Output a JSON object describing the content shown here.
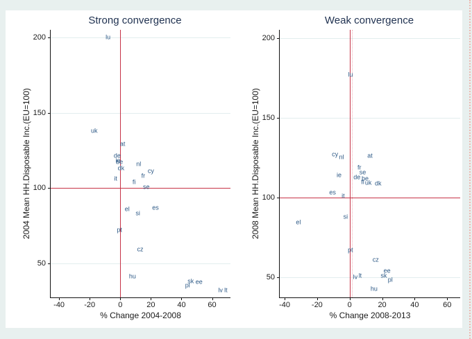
{
  "figure": {
    "background_color": "#e8f0ef",
    "card_color": "#ffffff",
    "reference_line_color": "#c63246",
    "reference_line_dotted_color": "#efb0b6",
    "gridline_color": "#e2edee",
    "point_label_color": "#2d5986",
    "title_color": "#1f3150"
  },
  "chart_data": [
    {
      "type": "scatter",
      "title": "Strong convergence",
      "xlabel": "% Change 2004-2008",
      "ylabel": "2004 Mean HH.Disposable Inc.(EU=100)",
      "xlim": [
        -45.5,
        72
      ],
      "ylim": [
        27.5,
        205
      ],
      "xticks": [
        -40,
        -20,
        0,
        20,
        40,
        60
      ],
      "yticks": [
        50,
        100,
        150,
        200
      ],
      "grid": "horizontal-only",
      "legend": "none",
      "marker_style": "country-code-text-labels",
      "reference_lines": [
        {
          "orientation": "vertical",
          "value": 0,
          "style": "solid"
        },
        {
          "orientation": "horizontal",
          "value": 100,
          "style": "solid"
        }
      ],
      "points": [
        {
          "label": "lu",
          "x": -8,
          "y": 200
        },
        {
          "label": "uk",
          "x": -17,
          "y": 138
        },
        {
          "label": "at",
          "x": 1.5,
          "y": 129
        },
        {
          "label": "de",
          "x": -2,
          "y": 121.5
        },
        {
          "label": "ie",
          "x": -1.5,
          "y": 118
        },
        {
          "label": "be",
          "x": -0.5,
          "y": 117
        },
        {
          "label": "nl",
          "x": 12,
          "y": 116
        },
        {
          "label": "dk",
          "x": 0.5,
          "y": 113
        },
        {
          "label": "cy",
          "x": 20,
          "y": 111
        },
        {
          "label": "fr",
          "x": 15,
          "y": 108
        },
        {
          "label": "it",
          "x": -3,
          "y": 106
        },
        {
          "label": "fi",
          "x": 9,
          "y": 104
        },
        {
          "label": "se",
          "x": 17,
          "y": 100.5
        },
        {
          "label": "es",
          "x": 23,
          "y": 87
        },
        {
          "label": "el",
          "x": 4.5,
          "y": 86
        },
        {
          "label": "si",
          "x": 11.5,
          "y": 83
        },
        {
          "label": "pt",
          "x": -0.5,
          "y": 72
        },
        {
          "label": "cz",
          "x": 13,
          "y": 59
        },
        {
          "label": "hu",
          "x": 8,
          "y": 41.5
        },
        {
          "label": "sk",
          "x": 46,
          "y": 38
        },
        {
          "label": "ee",
          "x": 51.5,
          "y": 37.5
        },
        {
          "label": "pl",
          "x": 44,
          "y": 35.5
        },
        {
          "label": "lv",
          "x": 65.5,
          "y": 32
        },
        {
          "label": "lt",
          "x": 69,
          "y": 32
        }
      ]
    },
    {
      "type": "scatter",
      "title": "Weak convergence",
      "xlabel": "% Change 2008-2013",
      "ylabel": "2008 Mean HH.Disposable Inc.(EU=100)",
      "xlim": [
        -43,
        68
      ],
      "ylim": [
        37.5,
        205
      ],
      "xticks": [
        -40,
        -20,
        0,
        20,
        40,
        60
      ],
      "yticks": [
        50,
        100,
        150,
        200
      ],
      "grid": "horizontal-only",
      "legend": "none",
      "marker_style": "country-code-text-labels",
      "reference_lines": [
        {
          "orientation": "vertical",
          "value": 0,
          "style": "solid"
        },
        {
          "orientation": "vertical",
          "value": 1.2,
          "style": "dotted"
        },
        {
          "orientation": "horizontal",
          "value": 100,
          "style": "solid"
        }
      ],
      "points": [
        {
          "label": "lu",
          "x": 0.5,
          "y": 177
        },
        {
          "label": "cy",
          "x": -9,
          "y": 127
        },
        {
          "label": "at",
          "x": 12.5,
          "y": 126
        },
        {
          "label": "nl",
          "x": -5,
          "y": 125
        },
        {
          "label": "fr",
          "x": 6,
          "y": 118.5
        },
        {
          "label": "se",
          "x": 8,
          "y": 115.5
        },
        {
          "label": "ie",
          "x": -6.5,
          "y": 114
        },
        {
          "label": "de",
          "x": 4.5,
          "y": 112.5
        },
        {
          "label": "be",
          "x": 9.5,
          "y": 111.5
        },
        {
          "label": "fi",
          "x": 8,
          "y": 109.5
        },
        {
          "label": "uk",
          "x": 11.5,
          "y": 109
        },
        {
          "label": "dk",
          "x": 17.5,
          "y": 108.5
        },
        {
          "label": "es",
          "x": -10.5,
          "y": 103
        },
        {
          "label": "it",
          "x": -4,
          "y": 101
        },
        {
          "label": "si",
          "x": -2.5,
          "y": 88
        },
        {
          "label": "el",
          "x": -31.5,
          "y": 84.5
        },
        {
          "label": "pt",
          "x": 0.5,
          "y": 67
        },
        {
          "label": "cz",
          "x": 16,
          "y": 61
        },
        {
          "label": "ee",
          "x": 23,
          "y": 54
        },
        {
          "label": "sk",
          "x": 21,
          "y": 51
        },
        {
          "label": "lt",
          "x": 6.5,
          "y": 51
        },
        {
          "label": "lv",
          "x": 3.5,
          "y": 50
        },
        {
          "label": "pl",
          "x": 25,
          "y": 48.5
        },
        {
          "label": "hu",
          "x": 15,
          "y": 42.5
        }
      ]
    }
  ]
}
